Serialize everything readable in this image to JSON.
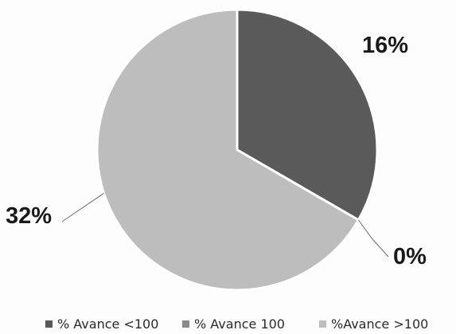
{
  "chart_data": {
    "type": "pie",
    "title": "",
    "start_angle_deg": 90,
    "direction": "clockwise",
    "legend_position": "bottom",
    "slices": [
      {
        "name": "% Avance <100",
        "value": 16,
        "label": "16%",
        "color": "#5a5a5a"
      },
      {
        "name": "% Avance 100",
        "value": 0,
        "label": "0%",
        "color": "#8a8a8a"
      },
      {
        "name": "%Avance >100",
        "value": 32,
        "label": "32%",
        "color": "#bdbdbd"
      }
    ]
  }
}
